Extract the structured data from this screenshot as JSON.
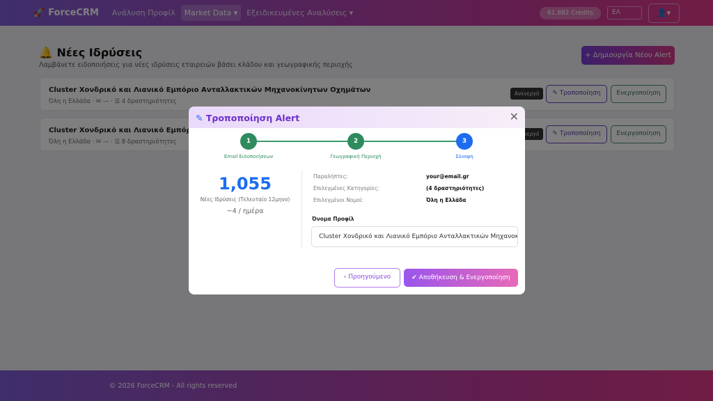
{
  "nav": {
    "brand": "ForceCRM",
    "items": [
      "Ανάλυση Προφίλ",
      "Market Data ▾",
      "Εξειδικευμένες Αναλύσεις ▾"
    ],
    "credits": "61.882 Credits",
    "lang": "ΕΛ",
    "user_icon": "user-icon"
  },
  "page": {
    "title": "Νέες Ιδρύσεις",
    "subtitle": "Λαμβάνετε ειδοποιήσεις για νέες ιδρύσεις εταιρειών βάσει κλάδου και γεωγραφικής περιοχής",
    "new_alert": "+ Δημιουργία Νέου Alert"
  },
  "alerts": [
    {
      "title": "Cluster Χονδρικό και Λιανικό Εμπόριο Ανταλλακτικών Μηχανοκίνητων Οχημάτων",
      "meta": "Όλη η Ελλάδα · ✉ — · ☰ 4 δραστηριότητες",
      "status": "Ανενεργό",
      "edit": "✎ Τροποποίηση",
      "activate": "Ενεργοποίηση"
    },
    {
      "title": "Cluster Χονδρικό και Λιανικό Εμπόριο Χρωμάτων",
      "meta": "Όλη η Ελλάδα · ✉ — · ☰ 8 δραστηριότητες",
      "status": "Ανενεργό",
      "edit": "✎ Τροποποίηση",
      "activate": "Ενεργοποίηση"
    }
  ],
  "footer": "© 2026 ForceCRM - All rights reserved",
  "modal": {
    "title": "Τροποποίηση Alert",
    "steps": [
      {
        "n": "1",
        "label": "Email Ειδοποιήσεων"
      },
      {
        "n": "2",
        "label": "Γεωγραφική Περιοχή"
      },
      {
        "n": "3",
        "label": "Σύνοψη"
      }
    ],
    "count": "1,055",
    "count_label": "Νέες Ιδρύσεις (Τελευταίο 12μηνο)",
    "per_day": "~4 / ημέρα",
    "summary": [
      {
        "k": "Παραλήπτες:",
        "v": "your@email.gr"
      },
      {
        "k": "Επιλεγμένες Κατηγορίες:",
        "v": "(4 δραστηριότητες)"
      },
      {
        "k": "Επιλεγμένοι Νομοί:",
        "v": "Όλη η Ελλάδα"
      }
    ],
    "profile_label": "Όνομα Προφίλ",
    "profile_value": "Cluster Χονδρικό και Λιανικό Εμπόριο Ανταλλακτικών Μηχανοκίνητων Οχημάτων",
    "prev": "‹ Προηγούμενο",
    "save": "✔ Αποθήκευση & Ενεργοποίηση"
  },
  "colors": {
    "done": "#2e8b5e",
    "current": "#1d6cf0",
    "accent": "#7a3cd8"
  }
}
